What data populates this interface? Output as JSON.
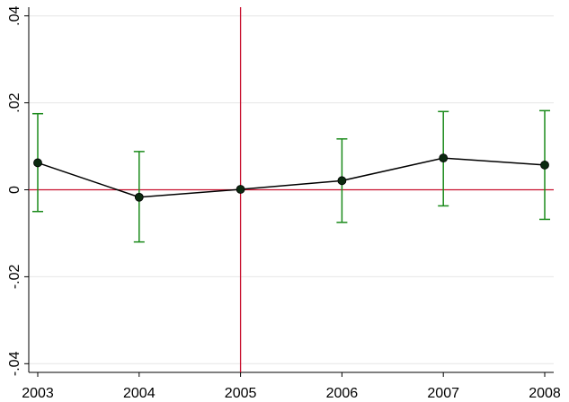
{
  "chart_data": {
    "type": "line",
    "x": [
      "2003",
      "2004",
      "2005",
      "2006",
      "2007",
      "2008"
    ],
    "series": [
      {
        "values": [
          0.0062,
          -0.0017,
          0.0001,
          0.0021,
          0.0073,
          0.0057
        ],
        "ci_lower": [
          -0.005,
          -0.012,
          0.0001,
          -0.0075,
          -0.0037,
          -0.0068
        ],
        "ci_upper": [
          0.0175,
          0.0088,
          0.0001,
          0.0117,
          0.018,
          0.0182
        ]
      }
    ],
    "ylim": [
      -0.042,
      0.042
    ],
    "yticks": [
      0.04,
      0.02,
      0,
      -0.02,
      -0.04
    ],
    "ytick_labels": [
      ".04",
      ".02",
      "0",
      "-.02",
      "-.04"
    ],
    "reference_lines": {
      "horizontal_y": 0,
      "vertical_x": "2005"
    },
    "grid": true,
    "colors": {
      "line": "#000000",
      "marker": "#0b2a10",
      "error_bar": "#1a8a1a",
      "reference": "#c8102e",
      "grid": "#e6e6e6",
      "axis": "#000000"
    }
  }
}
